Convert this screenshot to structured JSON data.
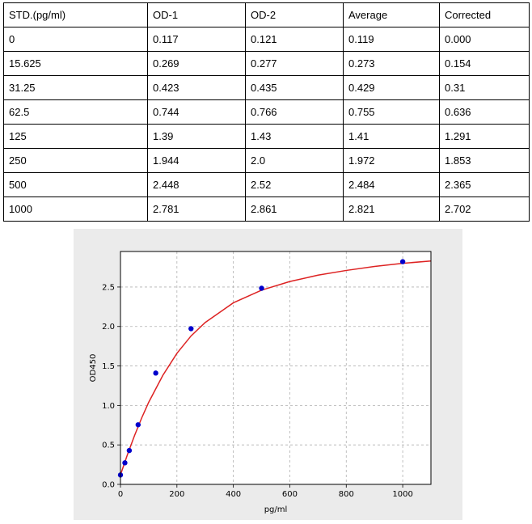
{
  "table": {
    "headers": [
      "STD.(pg/ml)",
      "OD-1",
      "OD-2",
      "Average",
      "Corrected"
    ],
    "rows": [
      [
        "0",
        "0.117",
        "0.121",
        "0.119",
        "0.000"
      ],
      [
        "15.625",
        "0.269",
        "0.277",
        "0.273",
        "0.154"
      ],
      [
        "31.25",
        "0.423",
        "0.435",
        "0.429",
        "0.31"
      ],
      [
        "62.5",
        "0.744",
        "0.766",
        "0.755",
        "0.636"
      ],
      [
        "125",
        "1.39",
        "1.43",
        "1.41",
        "1.291"
      ],
      [
        "250",
        "1.944",
        "2.0",
        "1.972",
        "1.853"
      ],
      [
        "500",
        "2.448",
        "2.52",
        "2.484",
        "2.365"
      ],
      [
        "1000",
        "2.781",
        "2.861",
        "2.821",
        "2.702"
      ]
    ]
  },
  "chart_data": {
    "type": "scatter",
    "title": "",
    "xlabel": "pg/ml",
    "ylabel": "OD450",
    "xlim": [
      0,
      1100
    ],
    "ylim": [
      0,
      2.95
    ],
    "xticks": [
      0,
      200,
      400,
      600,
      800,
      1000
    ],
    "xtick_labels": [
      "0",
      "200",
      "400",
      "600",
      "800",
      "1000"
    ],
    "yticks": [
      0.0,
      0.5,
      1.0,
      1.5,
      2.0,
      2.5
    ],
    "ytick_labels": [
      "0.0",
      "0.5",
      "1.0",
      "1.5",
      "2.0",
      "2.5"
    ],
    "grid": true,
    "series": [
      {
        "kind": "points",
        "x": [
          0,
          15.625,
          31.25,
          62.5,
          125,
          250,
          500,
          1000
        ],
        "y": [
          0.119,
          0.273,
          0.429,
          0.755,
          1.41,
          1.972,
          2.484,
          2.821
        ],
        "color": "#0000cc"
      },
      {
        "kind": "fit-curve",
        "x": [
          0,
          25,
          50,
          75,
          100,
          150,
          200,
          250,
          300,
          400,
          500,
          600,
          700,
          800,
          900,
          1000,
          1100
        ],
        "y": [
          0.12,
          0.38,
          0.62,
          0.84,
          1.04,
          1.38,
          1.66,
          1.88,
          2.05,
          2.3,
          2.46,
          2.57,
          2.65,
          2.71,
          2.76,
          2.8,
          2.83
        ],
        "color": "#dd2222"
      }
    ],
    "background": "#ebebeb"
  }
}
